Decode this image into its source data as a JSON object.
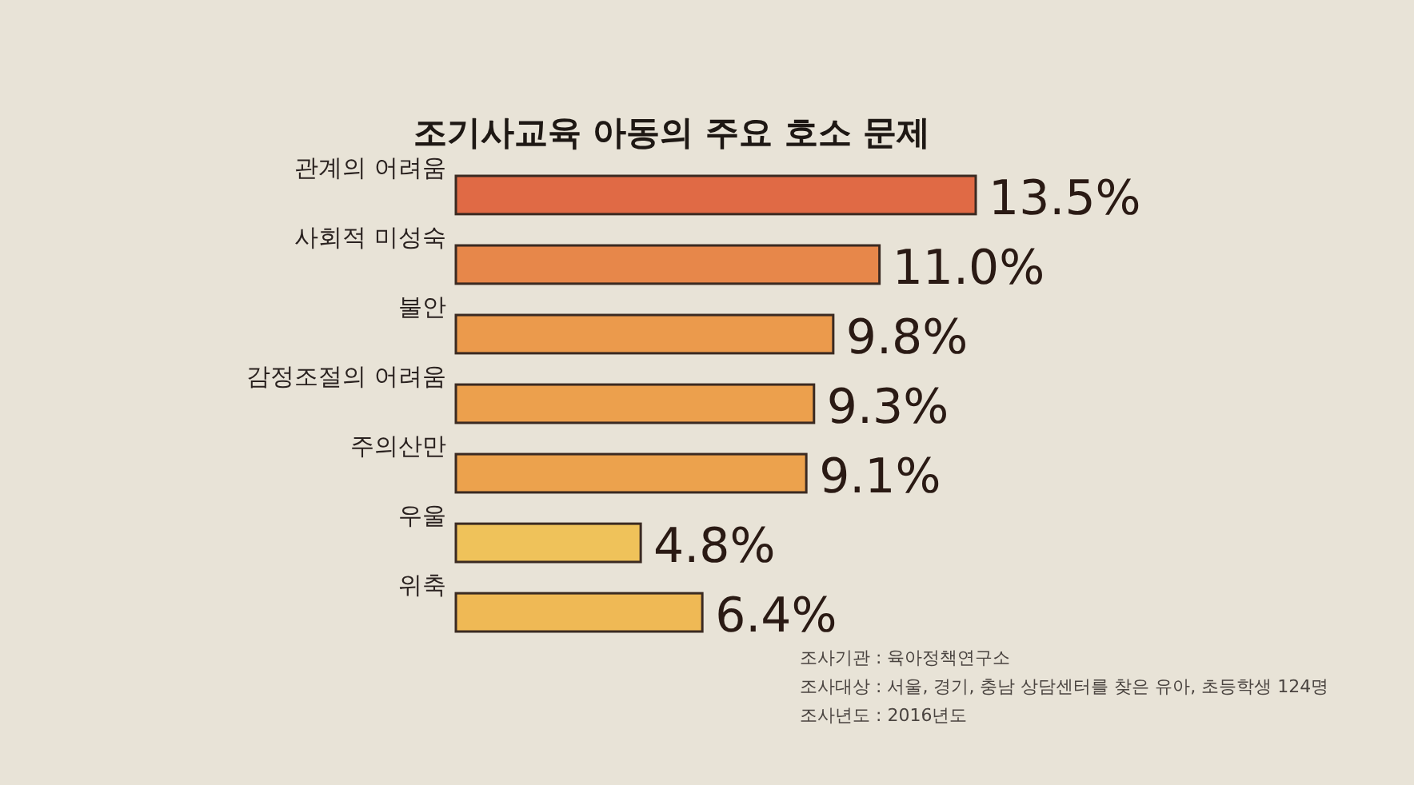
{
  "chart_data": {
    "type": "bar",
    "orientation": "horizontal",
    "title": "조기사교육 아동의 주요 호소 문제",
    "categories": [
      "관계의 어려움",
      "사회적 미성숙",
      "불안",
      "감정조절의 어려움",
      "주의산만",
      "우울",
      "위축"
    ],
    "values": [
      13.5,
      11.0,
      9.8,
      9.3,
      9.1,
      4.8,
      6.4
    ],
    "value_labels": [
      "13.5%",
      "11.0%",
      "9.8%",
      "9.3%",
      "9.1%",
      "4.8%",
      "6.4%"
    ],
    "colors": [
      "#e06a45",
      "#e7874a",
      "#eb9a4c",
      "#eca04d",
      "#eca24d",
      "#efc25a",
      "#efb955"
    ],
    "annotations": [
      "조사기관 : 육아정책연구소",
      "조사대상 : 서울, 경기, 충남 상담센터를 찾은 유아, 초등학생 124명",
      "조사년도 : 2016년도"
    ]
  }
}
